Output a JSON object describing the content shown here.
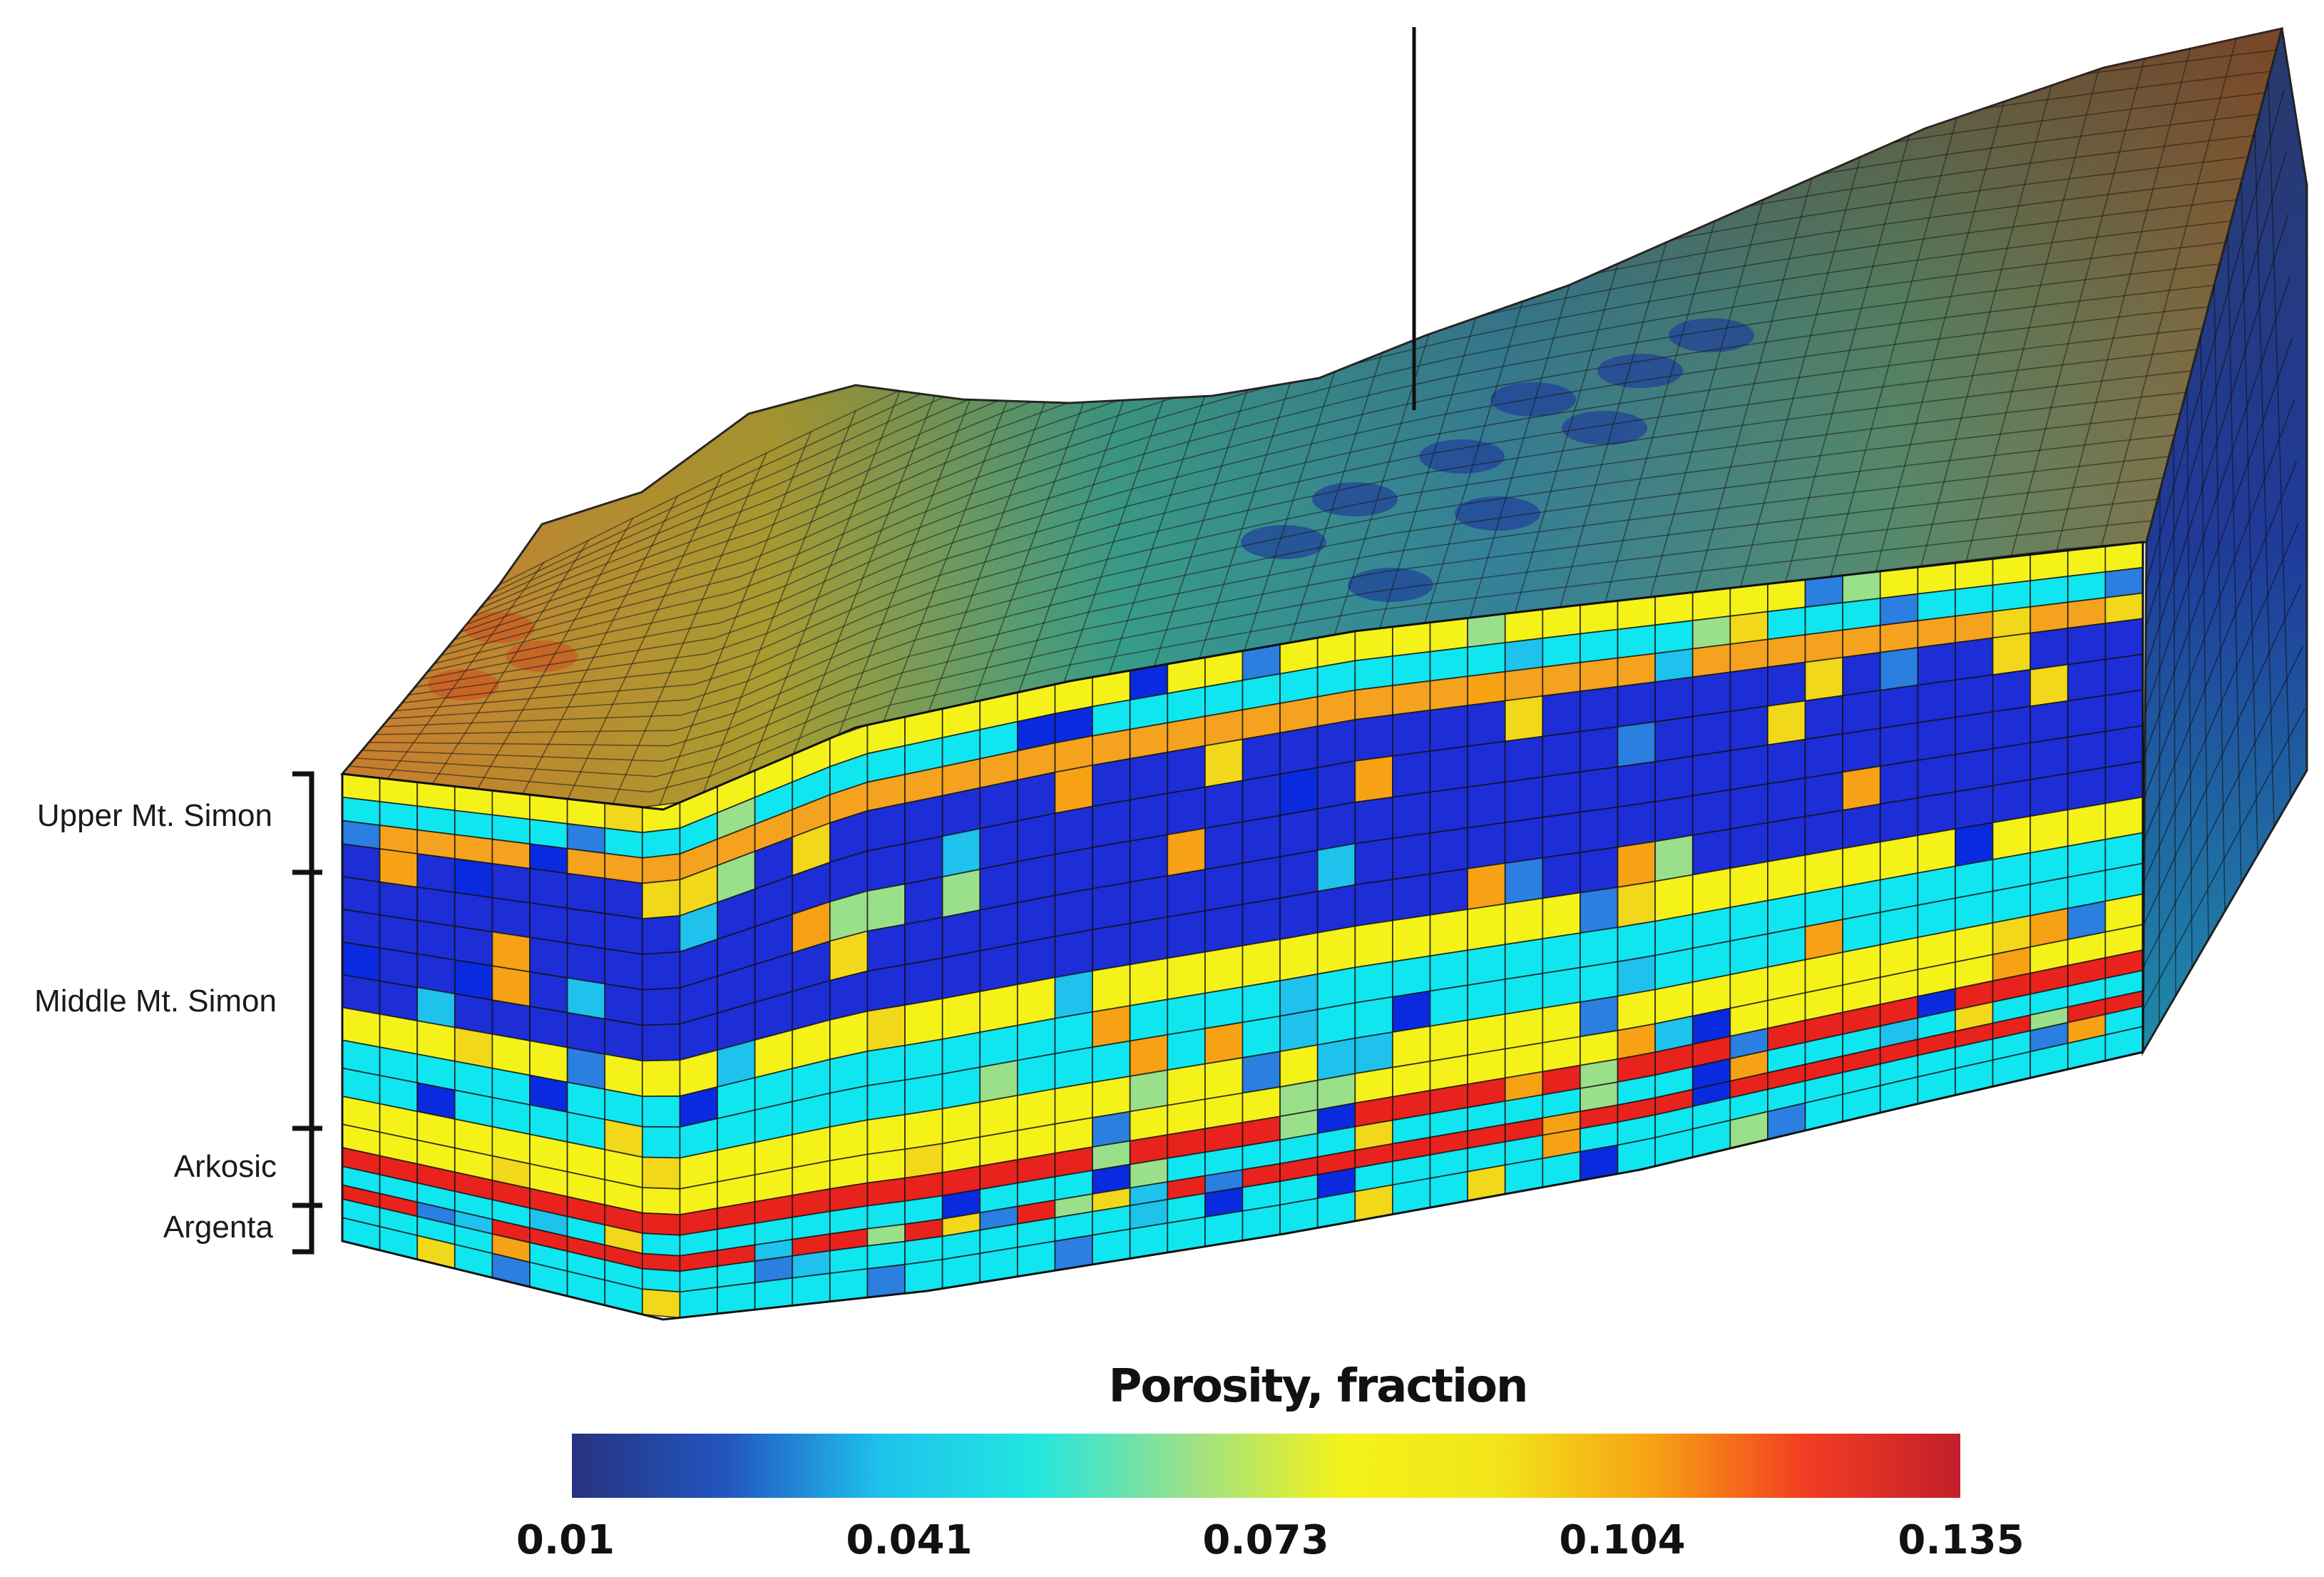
{
  "zones": [
    {
      "label": "Upper Mt. Simon"
    },
    {
      "label": "Middle Mt. Simon"
    },
    {
      "label": "Arkosic"
    },
    {
      "label": "Argenta"
    }
  ],
  "colorbar": {
    "title": "Porosity, fraction",
    "min": 0.01,
    "max": 0.135,
    "ticks": [
      "0.01",
      "0.041",
      "0.073",
      "0.104",
      "0.135"
    ],
    "stops": [
      "#26337f",
      "#2255c0",
      "#1ec2ec",
      "#22e6e0",
      "#9ae08a",
      "#f4f21a",
      "#f2e41a",
      "#f7a214",
      "#f23d22",
      "#c21f2b"
    ]
  },
  "palette": {
    "frame_bg": "#ffffff",
    "grid_line": "#111111",
    "low": "#1d2ed6",
    "cyan": "#10e6f0",
    "yellow": "#f5f21a",
    "orange": "#f5a21e",
    "red": "#e8221c"
  }
}
